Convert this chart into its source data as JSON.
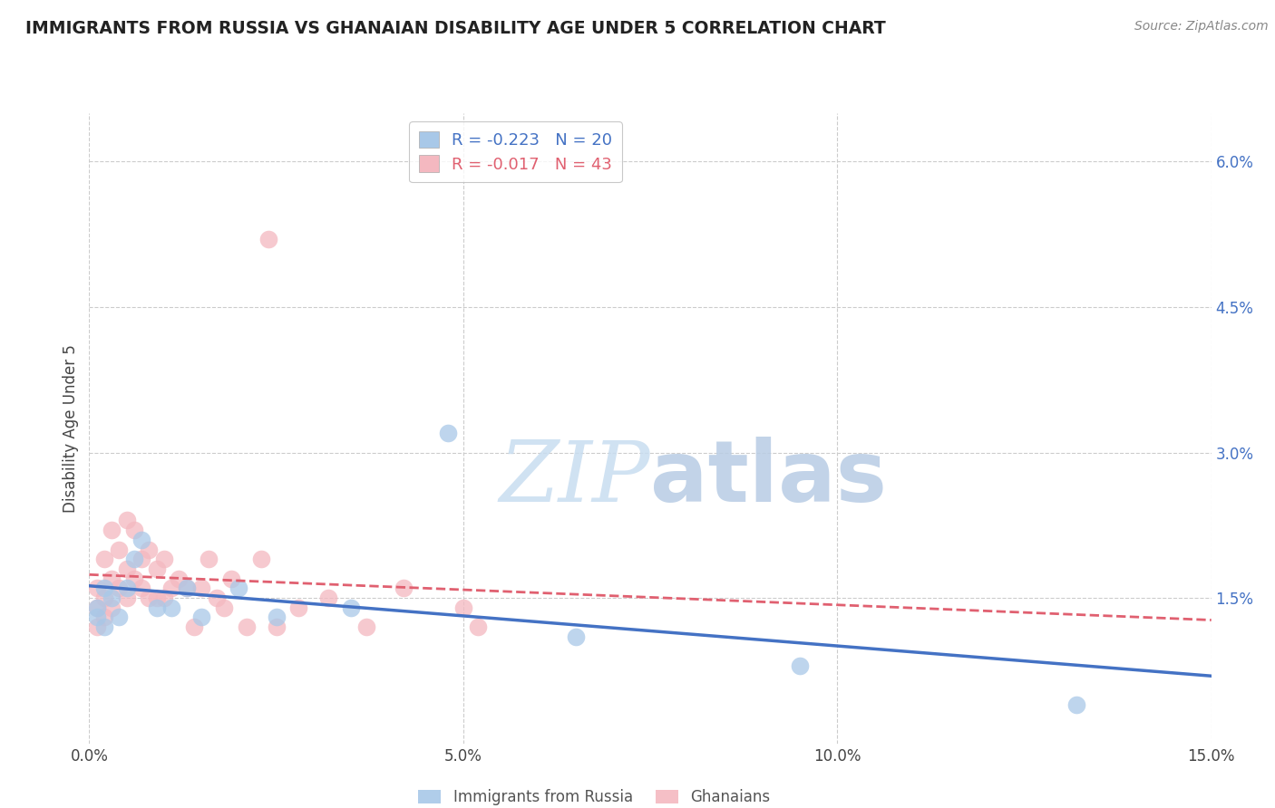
{
  "title": "IMMIGRANTS FROM RUSSIA VS GHANAIAN DISABILITY AGE UNDER 5 CORRELATION CHART",
  "source": "Source: ZipAtlas.com",
  "ylabel": "Disability Age Under 5",
  "xlim": [
    0,
    0.15
  ],
  "ylim": [
    0,
    0.065
  ],
  "yticks": [
    0.015,
    0.03,
    0.045,
    0.06
  ],
  "ytick_labels": [
    "1.5%",
    "3.0%",
    "4.5%",
    "6.0%"
  ],
  "xticks": [
    0.0,
    0.05,
    0.1,
    0.15
  ],
  "xtick_labels": [
    "0.0%",
    "5.0%",
    "10.0%",
    "15.0%"
  ],
  "russia_R": "-0.223",
  "russia_N": "20",
  "ghana_R": "-0.017",
  "ghana_N": "43",
  "russia_color": "#a8c8e8",
  "ghana_color": "#f4b8c0",
  "russia_line_color": "#4472c4",
  "ghana_line_color": "#e06070",
  "russia_x": [
    0.001,
    0.001,
    0.002,
    0.002,
    0.003,
    0.004,
    0.005,
    0.006,
    0.007,
    0.009,
    0.011,
    0.013,
    0.015,
    0.02,
    0.025,
    0.035,
    0.048,
    0.065,
    0.095,
    0.132
  ],
  "russia_y": [
    0.013,
    0.014,
    0.012,
    0.016,
    0.015,
    0.013,
    0.016,
    0.019,
    0.021,
    0.014,
    0.014,
    0.016,
    0.013,
    0.016,
    0.013,
    0.014,
    0.032,
    0.011,
    0.008,
    0.004
  ],
  "ghana_x": [
    0.001,
    0.001,
    0.001,
    0.002,
    0.002,
    0.002,
    0.003,
    0.003,
    0.003,
    0.004,
    0.004,
    0.005,
    0.005,
    0.005,
    0.006,
    0.006,
    0.007,
    0.007,
    0.008,
    0.008,
    0.009,
    0.009,
    0.01,
    0.01,
    0.011,
    0.012,
    0.013,
    0.014,
    0.015,
    0.016,
    0.017,
    0.018,
    0.019,
    0.021,
    0.023,
    0.025,
    0.028,
    0.032,
    0.037,
    0.042,
    0.05,
    0.052,
    0.024
  ],
  "ghana_y": [
    0.012,
    0.014,
    0.016,
    0.013,
    0.015,
    0.019,
    0.014,
    0.017,
    0.022,
    0.016,
    0.02,
    0.015,
    0.018,
    0.023,
    0.017,
    0.022,
    0.016,
    0.019,
    0.015,
    0.02,
    0.015,
    0.018,
    0.015,
    0.019,
    0.016,
    0.017,
    0.016,
    0.012,
    0.016,
    0.019,
    0.015,
    0.014,
    0.017,
    0.012,
    0.019,
    0.012,
    0.014,
    0.015,
    0.012,
    0.016,
    0.014,
    0.012,
    0.052
  ],
  "watermark_zip": "ZIP",
  "watermark_atlas": "atlas",
  "background_color": "#ffffff",
  "grid_color": "#cccccc"
}
